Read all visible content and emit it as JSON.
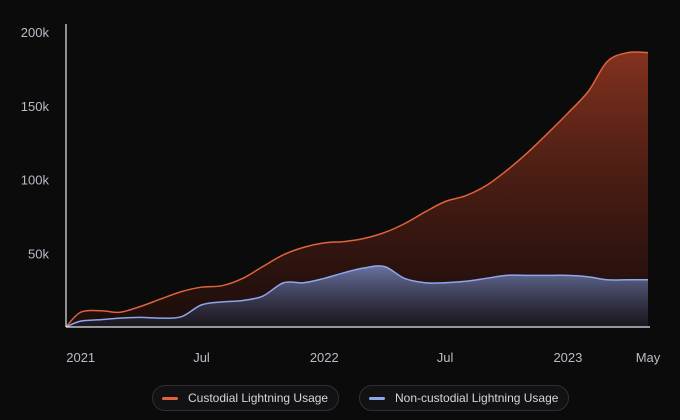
{
  "chart_data": {
    "type": "area",
    "title": "",
    "xlabel": "",
    "ylabel": "",
    "ylim": [
      0,
      200000
    ],
    "xlim": [
      "2020-12",
      "2023-05"
    ],
    "grid": false,
    "legend_position": "bottom-center",
    "x_ticks": [
      {
        "value": "2021-01",
        "label": "2021"
      },
      {
        "value": "2021-07",
        "label": "Jul"
      },
      {
        "value": "2022-01",
        "label": "2022"
      },
      {
        "value": "2022-07",
        "label": "Jul"
      },
      {
        "value": "2023-01",
        "label": "2023"
      },
      {
        "value": "2023-05",
        "label": "May"
      }
    ],
    "y_ticks": [
      {
        "value": 50000,
        "label": "50k"
      },
      {
        "value": 100000,
        "label": "100k"
      },
      {
        "value": 150000,
        "label": "150k"
      },
      {
        "value": 200000,
        "label": "200k"
      }
    ],
    "x": [
      "2020-12-10",
      "2021-01-01",
      "2021-02-01",
      "2021-03-01",
      "2021-04-01",
      "2021-05-01",
      "2021-06-01",
      "2021-07-01",
      "2021-08-01",
      "2021-09-01",
      "2021-10-01",
      "2021-11-01",
      "2021-12-01",
      "2022-01-01",
      "2022-02-01",
      "2022-03-01",
      "2022-04-01",
      "2022-05-01",
      "2022-06-01",
      "2022-07-01",
      "2022-08-01",
      "2022-09-01",
      "2022-10-01",
      "2022-11-01",
      "2022-12-01",
      "2023-01-01",
      "2023-02-01",
      "2023-03-01",
      "2023-04-01",
      "2023-05-01"
    ],
    "series": [
      {
        "name": "Custodial Lightning Usage",
        "color": "#e0633c",
        "values": [
          0,
          10000,
          11000,
          10000,
          14000,
          19000,
          24000,
          27000,
          28000,
          33000,
          41000,
          49000,
          54000,
          57000,
          58000,
          60000,
          64000,
          70000,
          78000,
          85000,
          89000,
          96000,
          106000,
          118000,
          131000,
          145000,
          160000,
          180000,
          186000,
          186000
        ]
      },
      {
        "name": "Non-custodial Lightning Usage",
        "color": "#8fa6ec",
        "values": [
          0,
          4000,
          5000,
          6000,
          6500,
          6000,
          7000,
          15000,
          17000,
          18000,
          21000,
          30000,
          30000,
          33000,
          37000,
          40000,
          41000,
          33000,
          30000,
          30000,
          31000,
          33000,
          35000,
          35000,
          35000,
          35000,
          34000,
          32000,
          32000,
          32000
        ]
      }
    ]
  },
  "legend": {
    "items": [
      {
        "label": "Custodial Lightning Usage",
        "color": "#e0633c"
      },
      {
        "label": "Non-custodial Lightning Usage",
        "color": "#8fa6ec"
      }
    ]
  }
}
